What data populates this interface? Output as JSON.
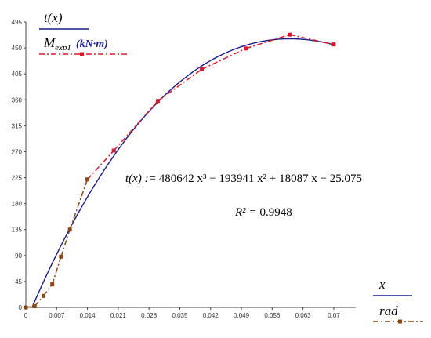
{
  "chart_data": {
    "type": "line",
    "title": "",
    "xlim": [
      0,
      0.075
    ],
    "ylim": [
      0,
      495
    ],
    "x_ticks": [
      "0",
      "0.007",
      "0.014",
      "0.021",
      "0.028",
      "0.035",
      "0.042",
      "0.049",
      "0.056",
      "0.063",
      "0.07"
    ],
    "y_ticks": [
      "0",
      "45",
      "90",
      "135",
      "180",
      "225",
      "270",
      "315",
      "360",
      "405",
      "450",
      "495"
    ],
    "grid": false,
    "legend": {
      "y_label": "t(x)",
      "series_label_main": "M",
      "series_label_sub": "exp1",
      "series_unit": "(kN·m)",
      "x_label": "x",
      "x_unit": "rad"
    },
    "annotation": {
      "equation_lhs": "t(x) :=",
      "equation_rhs": "480642 x³ − 193941 x² + 18087 x − 25.075",
      "r2_label": "R² =",
      "r2_value": "0.9948"
    },
    "series": [
      {
        "name": "t(x)",
        "kind": "fitted_polynomial",
        "coefficients": [
          480642,
          -193941,
          18087,
          -25.075
        ],
        "x_range": [
          0.0014,
          0.07
        ],
        "color": "#1a1a8c"
      },
      {
        "name": "Mexp1",
        "kind": "experimental",
        "color_early": "#8b4513",
        "color_late": "#e0162b",
        "x": [
          0,
          0.002,
          0.004,
          0.006,
          0.008,
          0.01,
          0.014,
          0.02,
          0.03,
          0.04,
          0.05,
          0.06,
          0.07
        ],
        "y": [
          0,
          2,
          20,
          40,
          88,
          135,
          222,
          272,
          358,
          413,
          449,
          473,
          456
        ]
      }
    ]
  }
}
